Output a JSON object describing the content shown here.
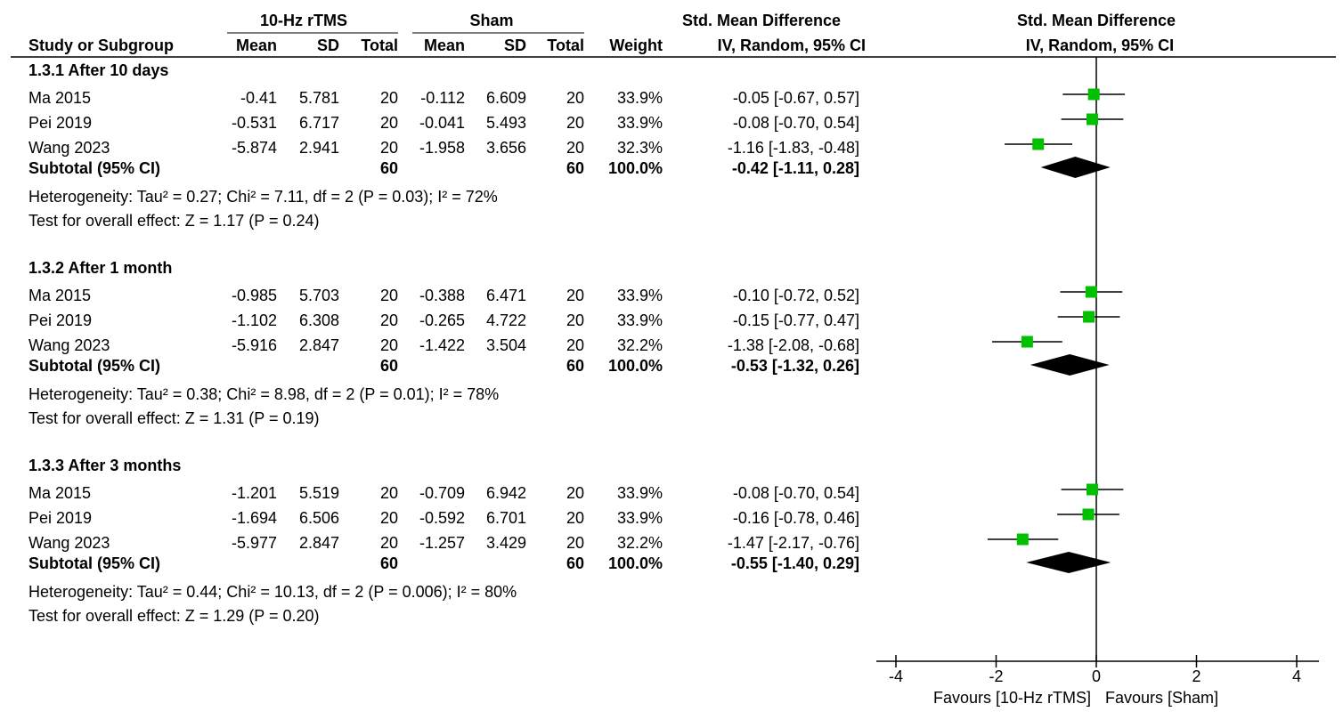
{
  "chart_data": {
    "type": "forest",
    "header": {
      "group_exp": "10-Hz rTMS",
      "group_ctrl": "Sham",
      "effect_table": "Std. Mean Difference",
      "effect_plot": "Std. Mean Difference",
      "col_study": "Study or Subgroup",
      "col_mean": "Mean",
      "col_sd": "SD",
      "col_total": "Total",
      "col_weight": "Weight",
      "col_method_table": "IV, Random, 95% CI",
      "col_method_plot": "IV, Random, 95% CI"
    },
    "subgroups": [
      {
        "title": "1.3.1 After 10 days",
        "studies": [
          {
            "name": "Ma 2015",
            "exp_mean": "-0.41",
            "exp_sd": "5.781",
            "exp_n": "20",
            "ctrl_mean": "-0.112",
            "ctrl_sd": "6.609",
            "ctrl_n": "20",
            "weight": "33.9%",
            "ci_text": "-0.05 [-0.67, 0.57]",
            "est": -0.05,
            "lo": -0.67,
            "hi": 0.57
          },
          {
            "name": "Pei 2019",
            "exp_mean": "-0.531",
            "exp_sd": "6.717",
            "exp_n": "20",
            "ctrl_mean": "-0.041",
            "ctrl_sd": "5.493",
            "ctrl_n": "20",
            "weight": "33.9%",
            "ci_text": "-0.08 [-0.70, 0.54]",
            "est": -0.08,
            "lo": -0.7,
            "hi": 0.54
          },
          {
            "name": "Wang 2023",
            "exp_mean": "-5.874",
            "exp_sd": "2.941",
            "exp_n": "20",
            "ctrl_mean": "-1.958",
            "ctrl_sd": "3.656",
            "ctrl_n": "20",
            "weight": "32.3%",
            "ci_text": "-1.16 [-1.83, -0.48]",
            "est": -1.16,
            "lo": -1.83,
            "hi": -0.48
          }
        ],
        "subtotal": {
          "label": "Subtotal (95% CI)",
          "exp_n": "60",
          "ctrl_n": "60",
          "weight": "100.0%",
          "ci_text": "-0.42 [-1.11, 0.28]",
          "est": -0.42,
          "lo": -1.11,
          "hi": 0.28
        },
        "heterogeneity": "Heterogeneity: Tau² = 0.27; Chi² = 7.11, df = 2 (P = 0.03); I² = 72%",
        "overall": "Test for overall effect: Z = 1.17 (P = 0.24)"
      },
      {
        "title": "1.3.2 After 1 month",
        "studies": [
          {
            "name": "Ma 2015",
            "exp_mean": "-0.985",
            "exp_sd": "5.703",
            "exp_n": "20",
            "ctrl_mean": "-0.388",
            "ctrl_sd": "6.471",
            "ctrl_n": "20",
            "weight": "33.9%",
            "ci_text": "-0.10 [-0.72, 0.52]",
            "est": -0.1,
            "lo": -0.72,
            "hi": 0.52
          },
          {
            "name": "Pei 2019",
            "exp_mean": "-1.102",
            "exp_sd": "6.308",
            "exp_n": "20",
            "ctrl_mean": "-0.265",
            "ctrl_sd": "4.722",
            "ctrl_n": "20",
            "weight": "33.9%",
            "ci_text": "-0.15 [-0.77, 0.47]",
            "est": -0.15,
            "lo": -0.77,
            "hi": 0.47
          },
          {
            "name": "Wang 2023",
            "exp_mean": "-5.916",
            "exp_sd": "2.847",
            "exp_n": "20",
            "ctrl_mean": "-1.422",
            "ctrl_sd": "3.504",
            "ctrl_n": "20",
            "weight": "32.2%",
            "ci_text": "-1.38 [-2.08, -0.68]",
            "est": -1.38,
            "lo": -2.08,
            "hi": -0.68
          }
        ],
        "subtotal": {
          "label": "Subtotal (95% CI)",
          "exp_n": "60",
          "ctrl_n": "60",
          "weight": "100.0%",
          "ci_text": "-0.53 [-1.32, 0.26]",
          "est": -0.53,
          "lo": -1.32,
          "hi": 0.26
        },
        "heterogeneity": "Heterogeneity: Tau² = 0.38; Chi² = 8.98, df = 2 (P = 0.01); I² = 78%",
        "overall": "Test for overall effect: Z = 1.31 (P = 0.19)"
      },
      {
        "title": "1.3.3 After 3 months",
        "studies": [
          {
            "name": "Ma 2015",
            "exp_mean": "-1.201",
            "exp_sd": "5.519",
            "exp_n": "20",
            "ctrl_mean": "-0.709",
            "ctrl_sd": "6.942",
            "ctrl_n": "20",
            "weight": "33.9%",
            "ci_text": "-0.08 [-0.70, 0.54]",
            "est": -0.08,
            "lo": -0.7,
            "hi": 0.54
          },
          {
            "name": "Pei 2019",
            "exp_mean": "-1.694",
            "exp_sd": "6.506",
            "exp_n": "20",
            "ctrl_mean": "-0.592",
            "ctrl_sd": "6.701",
            "ctrl_n": "20",
            "weight": "33.9%",
            "ci_text": "-0.16 [-0.78, 0.46]",
            "est": -0.16,
            "lo": -0.78,
            "hi": 0.46
          },
          {
            "name": "Wang 2023",
            "exp_mean": "-5.977",
            "exp_sd": "2.847",
            "exp_n": "20",
            "ctrl_mean": "-1.257",
            "ctrl_sd": "3.429",
            "ctrl_n": "20",
            "weight": "32.2%",
            "ci_text": "-1.47 [-2.17, -0.76]",
            "est": -1.47,
            "lo": -2.17,
            "hi": -0.76
          }
        ],
        "subtotal": {
          "label": "Subtotal (95% CI)",
          "exp_n": "60",
          "ctrl_n": "60",
          "weight": "100.0%",
          "ci_text": "-0.55 [-1.40, 0.29]",
          "est": -0.55,
          "lo": -1.4,
          "hi": 0.29
        },
        "heterogeneity": "Heterogeneity: Tau² = 0.44; Chi² = 10.13, df = 2 (P = 0.006); I² = 80%",
        "overall": "Test for overall effect: Z = 1.29 (P = 0.20)"
      }
    ],
    "x_axis": {
      "range": [
        -4,
        4
      ],
      "ticks": [
        -4,
        -2,
        0,
        2,
        4
      ],
      "tick_labels": [
        "-4",
        "-2",
        "0",
        "2",
        "4"
      ],
      "favours_left": "Favours [10-Hz rTMS]",
      "favours_right": "Favours [Sham]"
    },
    "colors": {
      "marker": "#00c000",
      "line": "#000000",
      "diamond": "#000000"
    }
  }
}
